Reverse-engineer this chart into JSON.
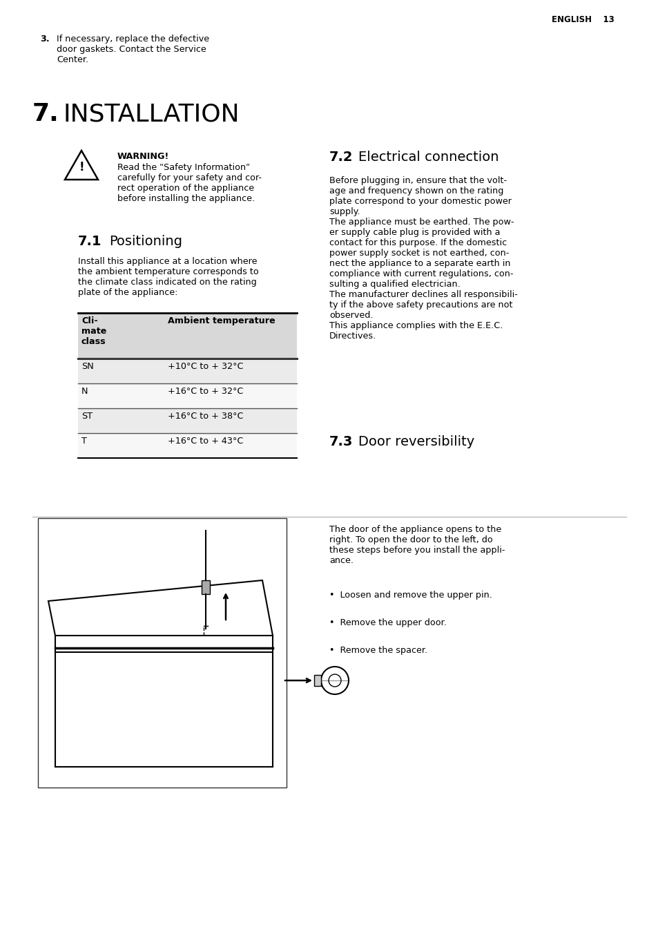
{
  "background_color": "#ffffff",
  "page_header_text": "ENGLISH    13",
  "step3_number": "3.",
  "step3_text": "If necessary, replace the defective\ndoor gaskets. Contact the Service\nCenter.",
  "section_num": "7.",
  "section_title": "INSTALLATION",
  "warning_bold": "WARNING!",
  "warning_text": "Read the \"Safety Information\"\ncarefully for your safety and cor-\nrect operation of the appliance\nbefore installing the appliance.",
  "sub71_num": "7.1",
  "sub71_title": "Positioning",
  "positioning_text": "Install this appliance at a location where\nthe ambient temperature corresponds to\nthe climate class indicated on the rating\nplate of the appliance:",
  "table_header_col1": "Cli-\nmate\nclass",
  "table_header_col2": "Ambient temperature",
  "table_rows": [
    [
      "SN",
      "+10°C to + 32°C"
    ],
    [
      "N",
      "+16°C to + 32°C"
    ],
    [
      "ST",
      "+16°C to + 38°C"
    ],
    [
      "T",
      "+16°C to + 43°C"
    ]
  ],
  "sub72_num": "7.2",
  "sub72_title": "Electrical connection",
  "electrical_text": "Before plugging in, ensure that the volt-\nage and frequency shown on the rating\nplate correspond to your domestic power\nsupply.\nThe appliance must be earthed. The pow-\ner supply cable plug is provided with a\ncontact for this purpose. If the domestic\npower supply socket is not earthed, con-\nnect the appliance to a separate earth in\ncompliance with current regulations, con-\nsulting a qualified electrician.\nThe manufacturer declines all responsibili-\nty if the above safety precautions are not\nobserved.\nThis appliance complies with the E.E.C.\nDirectives.",
  "sub73_num": "7.3",
  "sub73_title": "Door reversibility",
  "door_text": "The door of the appliance opens to the\nright. To open the door to the left, do\nthese steps before you install the appli-\nance.",
  "bullet_points": [
    "Loosen and remove the upper pin.",
    "Remove the upper door.",
    "Remove the spacer."
  ]
}
